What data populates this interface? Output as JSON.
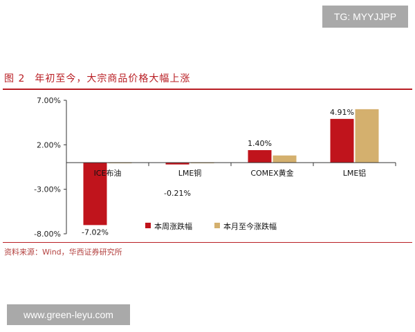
{
  "watermark_top": "TG: MYYJJPP",
  "watermark_bottom": "www.green-leyu.com",
  "figure": {
    "number": "图 2",
    "title": "年初至今，大宗商品价格大幅上涨"
  },
  "source_note": "资料来源：Wind，华西证券研究所",
  "colors": {
    "series1": "#c0141c",
    "series2": "#d4b06e",
    "accent": "#b81c22"
  },
  "chart_data": {
    "type": "bar",
    "categories": [
      "ICE布油",
      "LME铜",
      "COMEX黄金",
      "LME铝"
    ],
    "series": [
      {
        "name": "本周涨跌幅",
        "values": [
          -7.02,
          -0.21,
          1.4,
          4.91
        ]
      },
      {
        "name": "本月至今涨跌幅",
        "values": [
          0.0,
          0.0,
          0.8,
          6.0
        ]
      }
    ],
    "data_labels": [
      {
        "series": 0,
        "index": 0,
        "text": "-7.02%"
      },
      {
        "series": 0,
        "index": 1,
        "text": "-0.21%"
      },
      {
        "series": 0,
        "index": 2,
        "text": "1.40%"
      },
      {
        "series": 0,
        "index": 3,
        "text": "4.91%"
      }
    ],
    "yticks": [
      "7.00%",
      "2.00%",
      "-3.00%",
      "-8.00%"
    ],
    "ytick_values": [
      7,
      2,
      -3,
      -8
    ],
    "ylim": [
      -8,
      7
    ],
    "legend_position": "bottom-right",
    "grid": false
  }
}
